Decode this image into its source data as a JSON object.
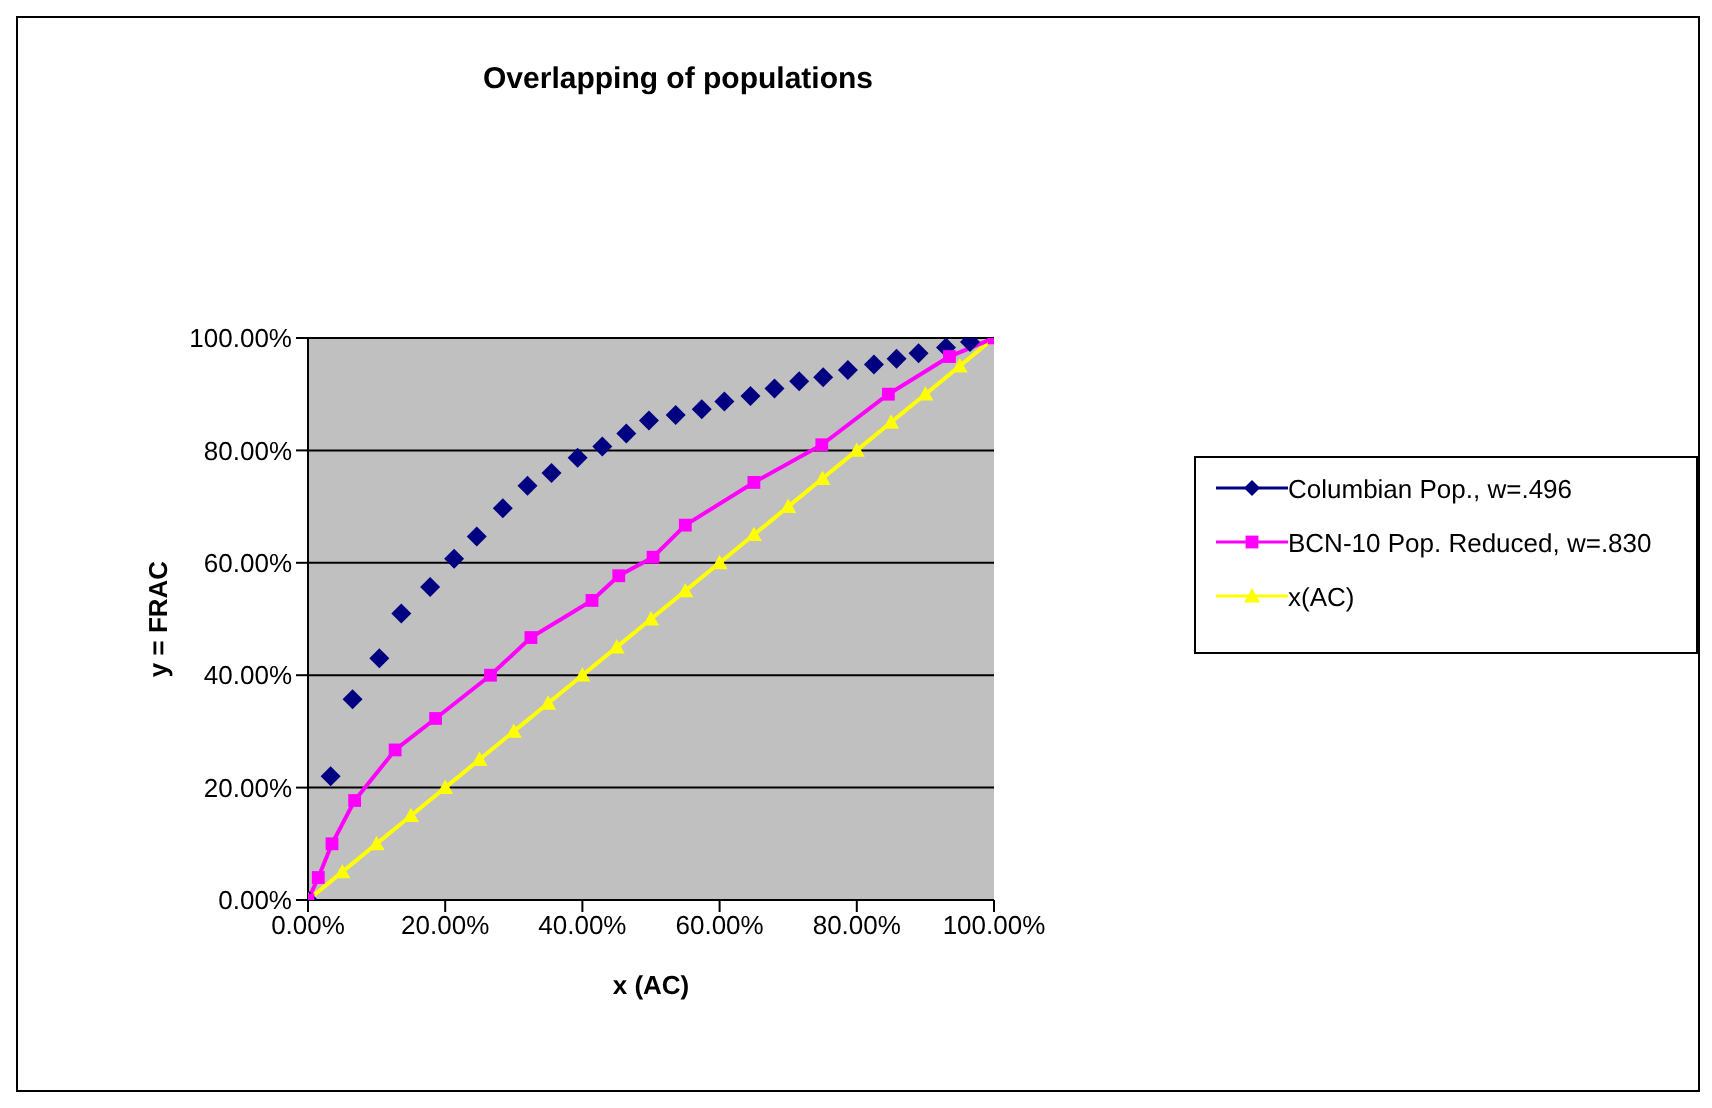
{
  "chart_data": {
    "type": "line",
    "title": "Overlapping of populations",
    "xlabel": "x (AC)",
    "ylabel": "y = FRAC",
    "xlim": [
      0,
      100
    ],
    "ylim": [
      0,
      100
    ],
    "xticks": [
      {
        "value": 0,
        "label": "0.00%"
      },
      {
        "value": 20,
        "label": "20.00%"
      },
      {
        "value": 40,
        "label": "40.00%"
      },
      {
        "value": 60,
        "label": "60.00%"
      },
      {
        "value": 80,
        "label": "80.00%"
      },
      {
        "value": 100,
        "label": "100.00%"
      }
    ],
    "yticks": [
      {
        "value": 0,
        "label": "0.00%"
      },
      {
        "value": 20,
        "label": "20.00%"
      },
      {
        "value": 40,
        "label": "40.00%"
      },
      {
        "value": 60,
        "label": "60.00%"
      },
      {
        "value": 80,
        "label": "80.00%"
      },
      {
        "value": 100,
        "label": "100.00%"
      }
    ],
    "grid": "y",
    "legend": "right",
    "series": [
      {
        "name": "Columbian Pop., w=.496",
        "type": "scatter",
        "marker": "diamond",
        "color": "#000080",
        "x": [
          0,
          3.3,
          6.5,
          10.4,
          13.6,
          17.8,
          21.3,
          24.6,
          28.4,
          32,
          35.5,
          39.3,
          42.9,
          46.4,
          49.7,
          53.6,
          57.4,
          60.7,
          64.5,
          68,
          71.6,
          75.1,
          78.7,
          82.5,
          85.8,
          89,
          93,
          96.5
        ],
        "values": [
          0,
          22,
          35.7,
          43,
          51,
          55.7,
          60.7,
          64.7,
          69.7,
          73.7,
          76,
          78.7,
          80.7,
          83,
          85.3,
          86.3,
          87.3,
          88.7,
          89.7,
          91,
          92.3,
          93,
          94.3,
          95.3,
          96.3,
          97.3,
          98.3,
          99.3
        ]
      },
      {
        "name": "BCN-10 Pop. Reduced, w=.830",
        "marker": "square",
        "color": "#ff00ff",
        "x": [
          0,
          1.5,
          3.5,
          6.8,
          12.7,
          18.6,
          26.6,
          32.5,
          41.4,
          45.3,
          50.3,
          55,
          65,
          74.9,
          84.6,
          93.5,
          100
        ],
        "values": [
          0,
          4,
          10,
          17.7,
          26.7,
          32.3,
          40,
          46.7,
          53.3,
          57.7,
          61,
          66.7,
          74.3,
          81,
          90,
          96.7,
          100
        ]
      },
      {
        "name": "x(AC)",
        "marker": "triangle",
        "color": "#ffff00",
        "x": [
          0,
          5,
          10,
          15,
          20,
          25,
          30,
          35,
          40,
          45,
          50,
          55,
          60,
          65,
          70,
          75,
          80,
          85,
          90,
          95,
          100
        ],
        "values": [
          0,
          5,
          10,
          15,
          20,
          25,
          30,
          35,
          40,
          45,
          50,
          55,
          60,
          65,
          70,
          75,
          80,
          85,
          90,
          95,
          100
        ]
      }
    ]
  }
}
